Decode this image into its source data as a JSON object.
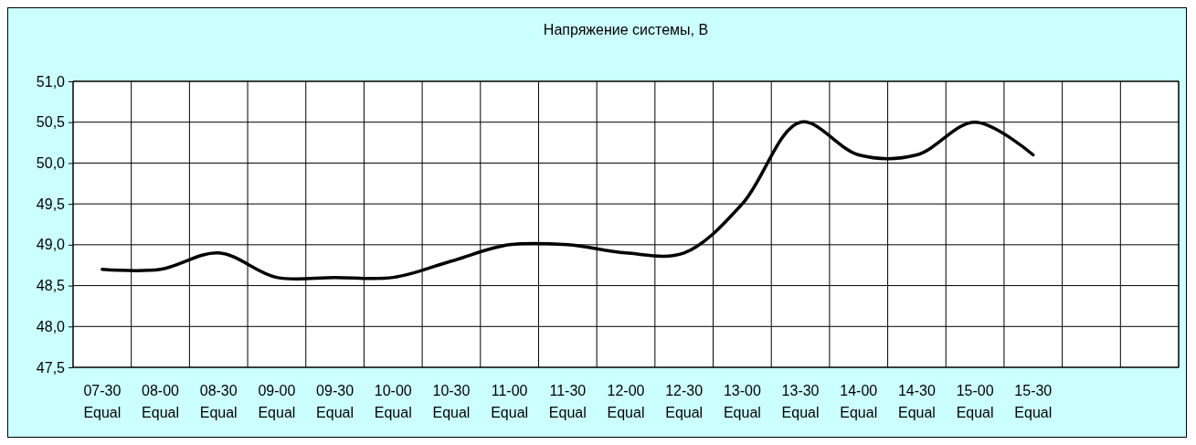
{
  "chart_data": {
    "type": "line",
    "title": "Напряжение системы, В",
    "categories": [
      "07-30\nEqual",
      "08-00\nEqual",
      "08-30\nEqual",
      "09-00\nEqual",
      "09-30\nEqual",
      "10-00\nEqual",
      "10-30\nEqual",
      "11-00\nEqual",
      "11-30\nEqual",
      "12-00\nEqual",
      "12-30\nEqual",
      "13-00\nEqual",
      "13-30\nEqual",
      "14-00\nEqual",
      "14-30\nEqual",
      "15-00\nEqual",
      "15-30\nEqual",
      null,
      null
    ],
    "series": [
      {
        "color": "#000000",
        "values": [
          48.7,
          48.7,
          48.9,
          48.6,
          48.6,
          48.6,
          48.8,
          49.0,
          49.0,
          48.9,
          48.9,
          49.5,
          50.5,
          50.1,
          50.1,
          50.5,
          50.1,
          null,
          null
        ]
      }
    ],
    "ylim": [
      47.5,
      51.0
    ],
    "yticks": [
      {
        "value": 47.5,
        "label": "47,5"
      },
      {
        "value": 48.0,
        "label": "48,0"
      },
      {
        "value": 48.5,
        "label": "48,5"
      },
      {
        "value": 49.0,
        "label": "49,0"
      },
      {
        "value": 49.5,
        "label": "49,5"
      },
      {
        "value": 50.0,
        "label": "50,0"
      },
      {
        "value": 50.5,
        "label": "50,5"
      },
      {
        "value": 51.0,
        "label": "51,0"
      }
    ],
    "grid": true,
    "marker": "none",
    "line_style": "solid"
  }
}
